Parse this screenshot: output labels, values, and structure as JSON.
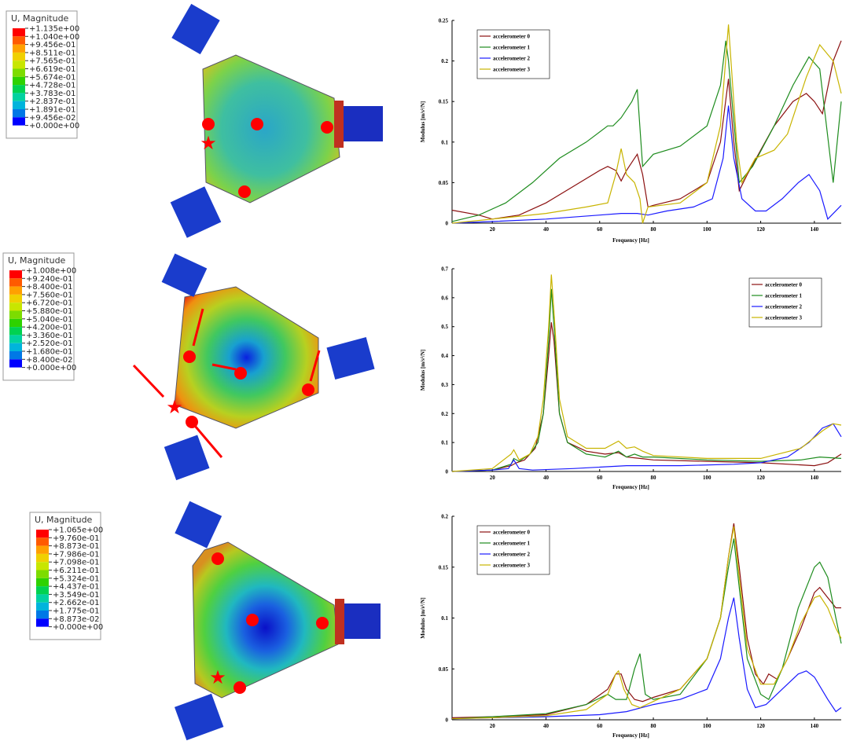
{
  "fem_panels": [
    {
      "title": "U, Magnitude",
      "labels": [
        "+1.135e+00",
        "+1.040e+00",
        "+9.456e-01",
        "+8.511e-01",
        "+7.565e-01",
        "+6.619e-01",
        "+5.674e-01",
        "+4.728e-01",
        "+3.783e-01",
        "+2.837e-01",
        "+1.891e-01",
        "+9.456e-02",
        "+0.000e+00"
      ],
      "colors": [
        "#ff0000",
        "#ff5a00",
        "#ffa000",
        "#f0d000",
        "#c8e600",
        "#7ddc00",
        "#2ed200",
        "#00d250",
        "#00d2a0",
        "#00b4dc",
        "#0078e6",
        "#0000ff"
      ]
    },
    {
      "title": "U, Magnitude",
      "labels": [
        "+1.008e+00",
        "+9.240e-01",
        "+8.400e-01",
        "+7.560e-01",
        "+6.720e-01",
        "+5.880e-01",
        "+5.040e-01",
        "+4.200e-01",
        "+3.360e-01",
        "+2.520e-01",
        "+1.680e-01",
        "+8.400e-02",
        "+0.000e+00"
      ],
      "colors": [
        "#ff0000",
        "#ff5a00",
        "#ffa000",
        "#f0d000",
        "#c8e600",
        "#7ddc00",
        "#2ed200",
        "#00d250",
        "#00d2a0",
        "#00b4dc",
        "#0078e6",
        "#0000ff"
      ]
    },
    {
      "title": "U, Magnitude",
      "labels": [
        "+1.065e+00",
        "+9.760e-01",
        "+8.873e-01",
        "+7.986e-01",
        "+7.098e-01",
        "+6.211e-01",
        "+5.324e-01",
        "+4.437e-01",
        "+3.549e-01",
        "+2.662e-01",
        "+1.775e-01",
        "+8.873e-02",
        "+0.000e+00"
      ],
      "colors": [
        "#ff0000",
        "#ff5a00",
        "#ffa000",
        "#f0d000",
        "#c8e600",
        "#7ddc00",
        "#2ed200",
        "#00d250",
        "#00d2a0",
        "#00b4dc",
        "#0078e6",
        "#0000ff"
      ]
    }
  ],
  "chart_data": [
    {
      "type": "line",
      "xlabel": "Frequency [Hz]",
      "ylabel": "Modulus [m/s²/N]",
      "xlim": [
        5,
        150
      ],
      "ylim": [
        0,
        0.25
      ],
      "xticks": [
        20,
        40,
        60,
        80,
        100,
        120,
        140
      ],
      "yticks": [
        0,
        0.05,
        0.1,
        0.15,
        0.2,
        0.25
      ],
      "grid": false,
      "legend_loc": "upper left",
      "series": [
        {
          "name": "accelerometer 0",
          "color": "#8b1010",
          "x": [
            5,
            15,
            20,
            30,
            40,
            50,
            60,
            63,
            66,
            68,
            70,
            73,
            74,
            76,
            78,
            80,
            90,
            100,
            105,
            108,
            110,
            112,
            115,
            120,
            125,
            132,
            137,
            140,
            143,
            147,
            150
          ],
          "values": [
            0.016,
            0.01,
            0.005,
            0.01,
            0.025,
            0.045,
            0.065,
            0.07,
            0.065,
            0.052,
            0.065,
            0.08,
            0.085,
            0.06,
            0.02,
            0.022,
            0.03,
            0.05,
            0.1,
            0.178,
            0.1,
            0.04,
            0.06,
            0.09,
            0.12,
            0.15,
            0.16,
            0.15,
            0.135,
            0.2,
            0.225
          ]
        },
        {
          "name": "accelerometer 1",
          "color": "#1e8c1e",
          "x": [
            5,
            15,
            25,
            35,
            45,
            55,
            63,
            65,
            68,
            72,
            74,
            76,
            80,
            90,
            100,
            105,
            107,
            108,
            112,
            117,
            125,
            132,
            138,
            142,
            147,
            150
          ],
          "values": [
            0.002,
            0.01,
            0.025,
            0.05,
            0.08,
            0.1,
            0.12,
            0.12,
            0.13,
            0.15,
            0.165,
            0.07,
            0.085,
            0.095,
            0.12,
            0.17,
            0.225,
            0.2,
            0.05,
            0.07,
            0.12,
            0.17,
            0.205,
            0.19,
            0.05,
            0.15
          ]
        },
        {
          "name": "accelerometer 2",
          "color": "#1a1aff",
          "x": [
            5,
            20,
            40,
            60,
            68,
            74,
            78,
            85,
            95,
            102,
            106,
            108,
            110,
            113,
            118,
            122,
            128,
            134,
            138,
            142,
            145,
            150
          ],
          "values": [
            0,
            0.002,
            0.005,
            0.01,
            0.012,
            0.012,
            0.01,
            0.015,
            0.02,
            0.03,
            0.08,
            0.145,
            0.08,
            0.03,
            0.015,
            0.015,
            0.03,
            0.05,
            0.06,
            0.04,
            0.005,
            0.022
          ]
        },
        {
          "name": "accelerometer 3",
          "color": "#c8b400",
          "x": [
            5,
            20,
            40,
            55,
            63,
            66,
            68,
            70,
            73,
            75,
            76,
            78,
            90,
            100,
            105,
            108,
            111,
            113,
            118,
            125,
            130,
            137,
            142,
            147,
            150
          ],
          "values": [
            0,
            0.005,
            0.012,
            0.02,
            0.025,
            0.06,
            0.092,
            0.06,
            0.05,
            0.03,
            0,
            0.02,
            0.025,
            0.05,
            0.12,
            0.245,
            0.1,
            0.05,
            0.08,
            0.09,
            0.11,
            0.18,
            0.22,
            0.2,
            0.16
          ]
        }
      ]
    },
    {
      "type": "line",
      "xlabel": "Frequency [Hz]",
      "ylabel": "Modulus [m/s²/N]",
      "xlim": [
        5,
        150
      ],
      "ylim": [
        0,
        0.7
      ],
      "xticks": [
        20,
        40,
        60,
        80,
        100,
        120,
        140
      ],
      "yticks": [
        0,
        0.1,
        0.2,
        0.3,
        0.4,
        0.5,
        0.6,
        0.7
      ],
      "grid": false,
      "legend_loc": "upper right",
      "series": [
        {
          "name": "accelerometer 0",
          "color": "#8b1010",
          "x": [
            5,
            20,
            27,
            29,
            32,
            36,
            39,
            41,
            42,
            43,
            45,
            48,
            55,
            62,
            67,
            70,
            75,
            80,
            100,
            120,
            140,
            145,
            150
          ],
          "values": [
            0,
            0.005,
            0.02,
            0.03,
            0.04,
            0.08,
            0.2,
            0.4,
            0.515,
            0.45,
            0.2,
            0.1,
            0.07,
            0.06,
            0.065,
            0.05,
            0.045,
            0.04,
            0.035,
            0.03,
            0.02,
            0.03,
            0.06
          ]
        },
        {
          "name": "accelerometer 1",
          "color": "#1e8c1e",
          "x": [
            5,
            20,
            27,
            28,
            30,
            34,
            37,
            39,
            41,
            42,
            43,
            45,
            48,
            55,
            62,
            67,
            70,
            73,
            76,
            80,
            100,
            120,
            135,
            142,
            150
          ],
          "values": [
            0,
            0.005,
            0.025,
            0.045,
            0.035,
            0.06,
            0.1,
            0.2,
            0.45,
            0.63,
            0.5,
            0.2,
            0.1,
            0.06,
            0.05,
            0.07,
            0.05,
            0.06,
            0.05,
            0.05,
            0.04,
            0.035,
            0.04,
            0.05,
            0.045
          ]
        },
        {
          "name": "accelerometer 2",
          "color": "#1a1aff",
          "x": [
            5,
            20,
            26,
            28,
            30,
            35,
            50,
            70,
            90,
            110,
            120,
            130,
            138,
            143,
            147,
            150
          ],
          "values": [
            0,
            0.005,
            0.01,
            0.04,
            0.01,
            0.005,
            0.01,
            0.02,
            0.02,
            0.025,
            0.03,
            0.05,
            0.1,
            0.15,
            0.165,
            0.12
          ]
        },
        {
          "name": "accelerometer 3",
          "color": "#c8b400",
          "x": [
            5,
            20,
            27,
            28,
            30,
            34,
            37,
            39,
            41,
            42,
            43,
            45,
            48,
            55,
            62,
            67,
            70,
            73,
            76,
            80,
            100,
            120,
            135,
            143,
            147,
            150
          ],
          "values": [
            0,
            0.01,
            0.06,
            0.075,
            0.04,
            0.06,
            0.12,
            0.25,
            0.5,
            0.68,
            0.55,
            0.25,
            0.12,
            0.08,
            0.08,
            0.105,
            0.08,
            0.085,
            0.07,
            0.055,
            0.045,
            0.045,
            0.08,
            0.14,
            0.165,
            0.16
          ]
        }
      ]
    },
    {
      "type": "line",
      "xlabel": "Frequency [Hz]",
      "ylabel": "Modulus [m/s²/N]",
      "xlim": [
        5,
        150
      ],
      "ylim": [
        0,
        0.2
      ],
      "xticks": [
        20,
        40,
        60,
        80,
        100,
        120,
        140
      ],
      "yticks": [
        0,
        0.05,
        0.1,
        0.15,
        0.2
      ],
      "grid": false,
      "legend_loc": "upper left",
      "series": [
        {
          "name": "accelerometer 0",
          "color": "#8b1010",
          "x": [
            5,
            20,
            40,
            55,
            63,
            66,
            68,
            70,
            73,
            76,
            80,
            90,
            100,
            105,
            108,
            110,
            112,
            115,
            118,
            121,
            123,
            126,
            130,
            135,
            140,
            142,
            145,
            148,
            150
          ],
          "values": [
            0.002,
            0.003,
            0.005,
            0.015,
            0.03,
            0.045,
            0.045,
            0.03,
            0.02,
            0.018,
            0.022,
            0.03,
            0.06,
            0.1,
            0.16,
            0.193,
            0.15,
            0.08,
            0.045,
            0.035,
            0.045,
            0.04,
            0.06,
            0.09,
            0.125,
            0.13,
            0.12,
            0.11,
            0.11
          ]
        },
        {
          "name": "accelerometer 1",
          "color": "#1e8c1e",
          "x": [
            5,
            20,
            40,
            55,
            63,
            66,
            70,
            73,
            75,
            77,
            80,
            90,
            100,
            105,
            108,
            110,
            112,
            115,
            120,
            123,
            128,
            134,
            140,
            142,
            145,
            148,
            150
          ],
          "values": [
            0.001,
            0.003,
            0.006,
            0.015,
            0.025,
            0.02,
            0.02,
            0.05,
            0.065,
            0.025,
            0.02,
            0.025,
            0.06,
            0.1,
            0.15,
            0.178,
            0.13,
            0.06,
            0.025,
            0.02,
            0.05,
            0.11,
            0.15,
            0.155,
            0.14,
            0.1,
            0.075
          ]
        },
        {
          "name": "accelerometer 2",
          "color": "#1a1aff",
          "x": [
            5,
            20,
            40,
            60,
            70,
            80,
            90,
            100,
            105,
            108,
            110,
            112,
            115,
            118,
            122,
            128,
            134,
            137,
            140,
            145,
            148,
            150
          ],
          "values": [
            0.001,
            0.002,
            0.003,
            0.005,
            0.008,
            0.015,
            0.02,
            0.03,
            0.06,
            0.1,
            0.12,
            0.08,
            0.03,
            0.012,
            0.015,
            0.03,
            0.045,
            0.048,
            0.042,
            0.02,
            0.008,
            0.012
          ]
        },
        {
          "name": "accelerometer 3",
          "color": "#c8b400",
          "x": [
            5,
            20,
            40,
            55,
            63,
            66,
            67,
            69,
            72,
            75,
            80,
            90,
            100,
            105,
            108,
            110,
            112,
            115,
            120,
            125,
            130,
            135,
            140,
            142,
            145,
            148,
            150
          ],
          "values": [
            0.001,
            0.002,
            0.004,
            0.01,
            0.025,
            0.045,
            0.048,
            0.03,
            0.015,
            0.012,
            0.018,
            0.03,
            0.06,
            0.1,
            0.16,
            0.19,
            0.14,
            0.07,
            0.035,
            0.035,
            0.06,
            0.095,
            0.12,
            0.122,
            0.11,
            0.09,
            0.08
          ]
        }
      ]
    }
  ]
}
